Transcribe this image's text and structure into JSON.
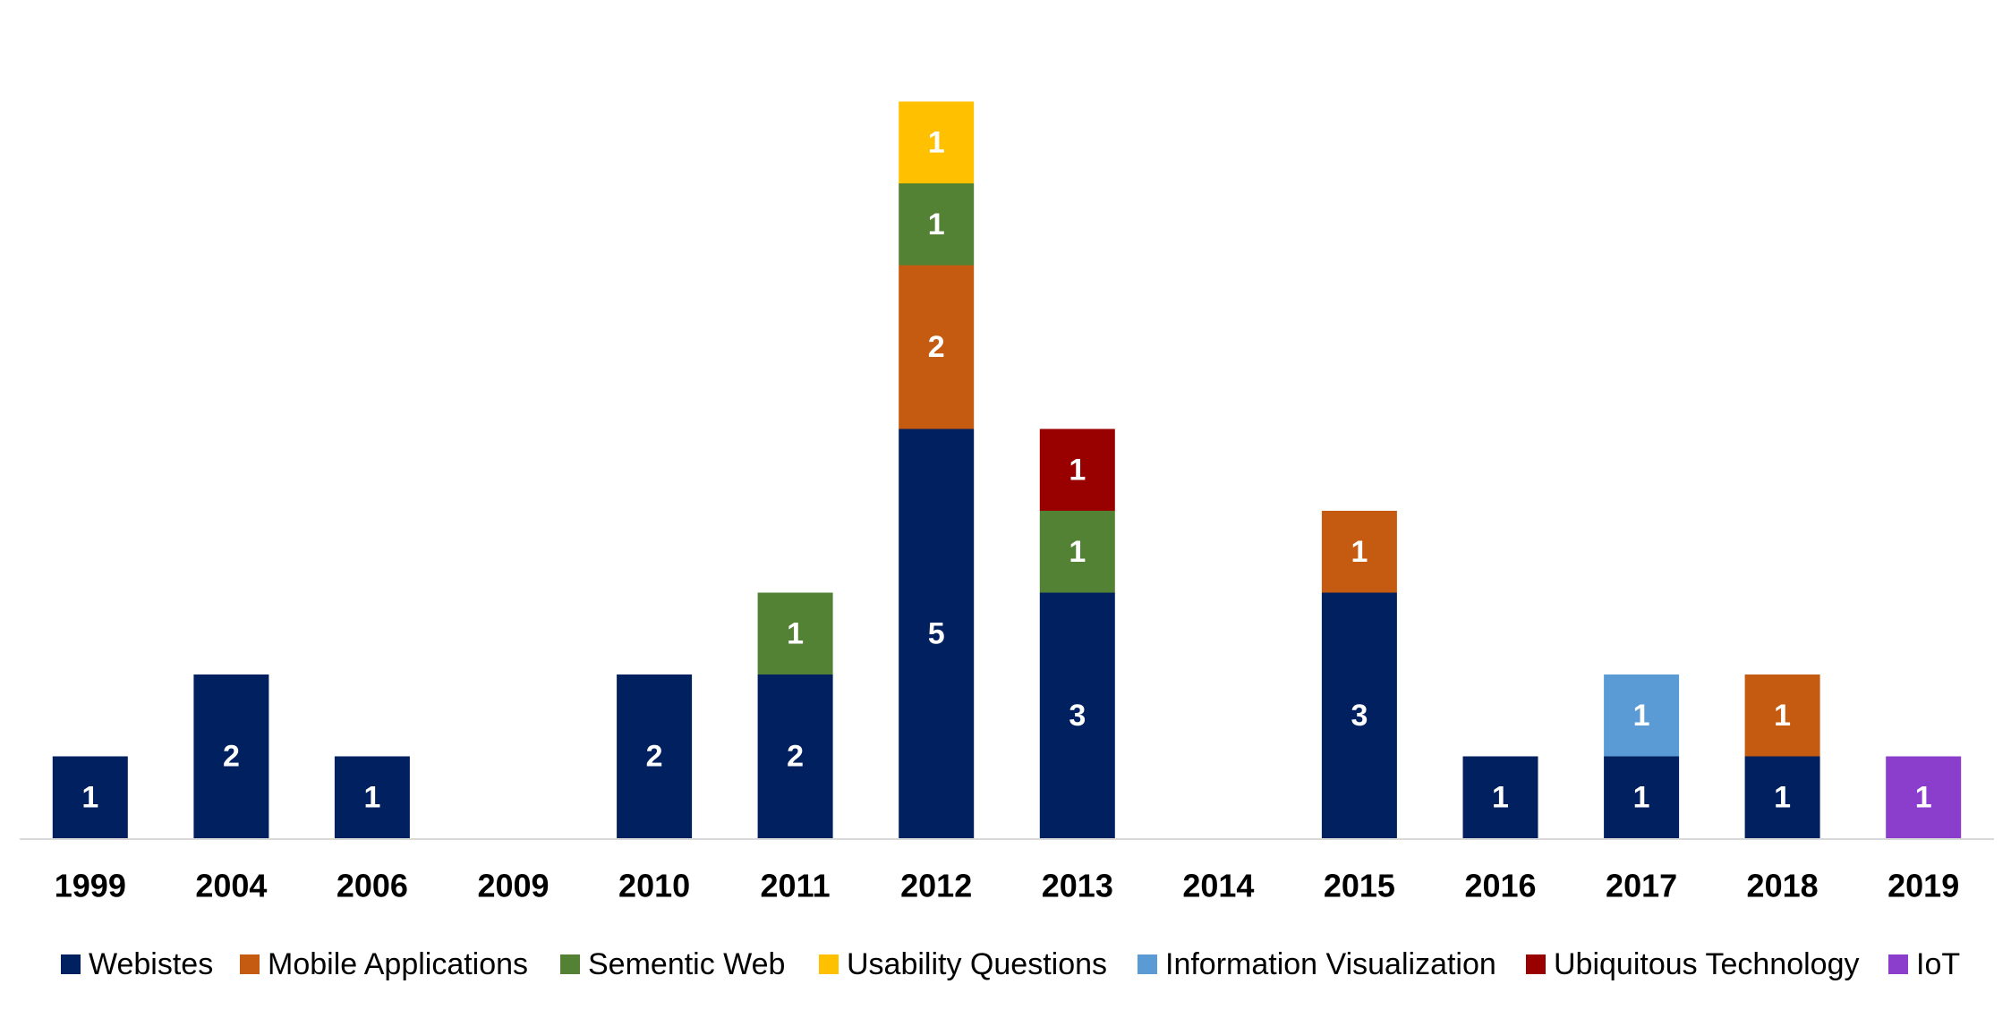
{
  "chart_data": {
    "type": "bar",
    "stacked": true,
    "title": "",
    "xlabel": "",
    "ylabel": "",
    "ylim": [
      0,
      9
    ],
    "grid": false,
    "legend_position": "bottom",
    "categories": [
      "1999",
      "2004",
      "2006",
      "2009",
      "2010",
      "2011",
      "2012",
      "2013",
      "2014",
      "2015",
      "2016",
      "2017",
      "2018",
      "2019"
    ],
    "series": [
      {
        "name": "Webistes",
        "color": "#002060",
        "values": [
          1,
          2,
          1,
          0,
          2,
          2,
          5,
          3,
          0,
          3,
          1,
          1,
          1,
          0
        ]
      },
      {
        "name": "Mobile Applications",
        "color": "#C55A11",
        "values": [
          0,
          0,
          0,
          0,
          0,
          0,
          2,
          0,
          0,
          1,
          0,
          0,
          1,
          0
        ]
      },
      {
        "name": "Sementic Web",
        "color": "#548235",
        "values": [
          0,
          0,
          0,
          0,
          0,
          1,
          1,
          1,
          0,
          0,
          0,
          0,
          0,
          0
        ]
      },
      {
        "name": "Usability Questions",
        "color": "#FFC000",
        "values": [
          0,
          0,
          0,
          0,
          0,
          0,
          1,
          0,
          0,
          0,
          0,
          0,
          0,
          0
        ]
      },
      {
        "name": "Information Visualization",
        "color": "#5B9BD5",
        "values": [
          0,
          0,
          0,
          0,
          0,
          0,
          0,
          0,
          0,
          0,
          0,
          1,
          0,
          0
        ]
      },
      {
        "name": "Ubiquitous Technology",
        "color": "#990000",
        "values": [
          0,
          0,
          0,
          0,
          0,
          0,
          0,
          1,
          0,
          0,
          0,
          0,
          0,
          0
        ]
      },
      {
        "name": "IoT",
        "color": "#8B3DCC",
        "values": [
          0,
          0,
          0,
          0,
          0,
          0,
          0,
          0,
          0,
          0,
          0,
          0,
          0,
          1
        ]
      }
    ]
  }
}
